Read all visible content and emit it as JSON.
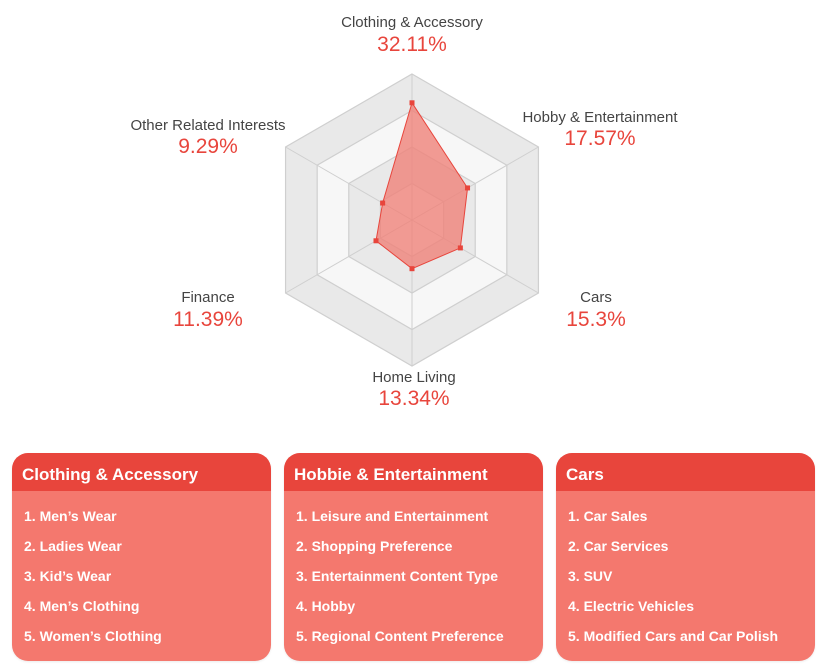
{
  "chart_data": {
    "type": "radar",
    "categories": [
      "Clothing & Accessory",
      "Hobby & Entertainment",
      "Cars",
      "Home Living",
      "Finance",
      "Other Related Interests"
    ],
    "values": [
      32.11,
      17.57,
      15.3,
      13.34,
      11.39,
      9.29
    ],
    "value_labels": [
      "32.11%",
      "17.57%",
      "15.3%",
      "13.34%",
      "11.39%",
      "9.29%"
    ],
    "rmax": 40,
    "rings": 4,
    "colors": {
      "fill": "#f08077",
      "stroke": "#e8453c",
      "point": "#e8453c",
      "grid": "#cfcfcf"
    }
  },
  "cards": [
    {
      "title": "Clothing & Accessory",
      "items": [
        "1. Men’s Wear",
        "2. Ladies Wear",
        "3. Kid’s Wear",
        "4. Men’s Clothing",
        "5. Women’s Clothing"
      ]
    },
    {
      "title": "Hobbie & Entertainment",
      "items": [
        "1. Leisure and Entertainment",
        "2. Shopping Preference",
        "3. Entertainment Content Type",
        "4. Hobby",
        "5. Regional Content Preference"
      ]
    },
    {
      "title": "Cars",
      "items": [
        "1. Car Sales",
        "2. Car Services",
        "3. SUV",
        "4. Electric Vehicles",
        "5. Modified Cars and Car Polish"
      ]
    }
  ]
}
